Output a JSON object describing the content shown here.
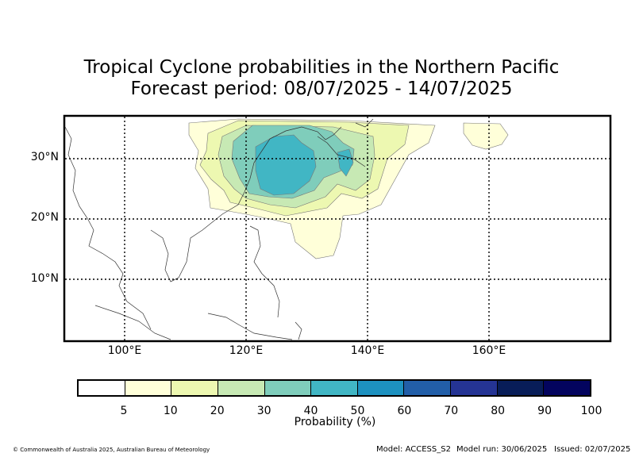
{
  "title": {
    "line1": "Tropical Cyclone probabilities in the Northern Pacific",
    "line2": "Forecast period: 08/07/2025 - 14/07/2025"
  },
  "map": {
    "lat_labels": [
      "30°N",
      "20°N",
      "10°N"
    ],
    "lon_labels": [
      "100°E",
      "120°E",
      "140°E",
      "160°E"
    ],
    "extent": {
      "lon_min": 90,
      "lon_max": 180,
      "lat_min": 0,
      "lat_max": 37
    },
    "contour_colors": [
      "#ffffd9",
      "#eef8b5",
      "#c7e9b4",
      "#7fcdbb",
      "#41b6c4"
    ]
  },
  "colorbar": {
    "label": "Probability (%)",
    "ticks": [
      "5",
      "10",
      "20",
      "30",
      "40",
      "50",
      "60",
      "70",
      "80",
      "90",
      "100"
    ],
    "colors": [
      "#ffffff",
      "#ffffd9",
      "#edf8b1",
      "#c7e9b4",
      "#7fcdbb",
      "#41b6c4",
      "#1d91c0",
      "#225ea8",
      "#253494",
      "#081d58",
      "#03045e"
    ]
  },
  "footer": {
    "copyright": "© Commonwealth of Australia 2025, Australian Bureau of Meteorology",
    "model": "Model: ACCESS_S2",
    "model_run": "Model run: 30/06/2025",
    "issued": "Issued: 02/07/2025"
  }
}
